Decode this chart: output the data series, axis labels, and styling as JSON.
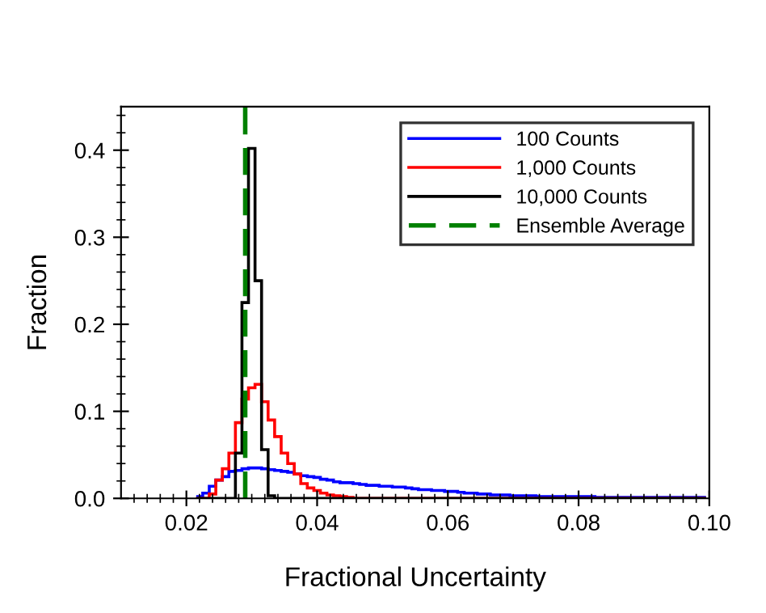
{
  "chart_data": {
    "type": "histogram",
    "xlabel": "Fractional Uncertainty",
    "ylabel": "Fraction",
    "xlim": [
      0.01,
      0.1
    ],
    "ylim": [
      0,
      0.45
    ],
    "xticks": [
      {
        "value": 0.012,
        "label": null
      },
      {
        "value": 0.014,
        "label": null
      },
      {
        "value": 0.016,
        "label": null
      },
      {
        "value": 0.018,
        "label": null
      },
      {
        "value": 0.02,
        "label": "0.02"
      },
      {
        "value": 0.022,
        "label": null
      },
      {
        "value": 0.024,
        "label": null
      },
      {
        "value": 0.026,
        "label": null
      },
      {
        "value": 0.028,
        "label": null
      },
      {
        "value": 0.03,
        "label": null
      },
      {
        "value": 0.032,
        "label": null
      },
      {
        "value": 0.034,
        "label": null
      },
      {
        "value": 0.036,
        "label": null
      },
      {
        "value": 0.038,
        "label": null
      },
      {
        "value": 0.04,
        "label": "0.04"
      },
      {
        "value": 0.042,
        "label": null
      },
      {
        "value": 0.044,
        "label": null
      },
      {
        "value": 0.046,
        "label": null
      },
      {
        "value": 0.048,
        "label": null
      },
      {
        "value": 0.05,
        "label": null
      },
      {
        "value": 0.052,
        "label": null
      },
      {
        "value": 0.054,
        "label": null
      },
      {
        "value": 0.056,
        "label": null
      },
      {
        "value": 0.058,
        "label": null
      },
      {
        "value": 0.06,
        "label": "0.06"
      },
      {
        "value": 0.062,
        "label": null
      },
      {
        "value": 0.064,
        "label": null
      },
      {
        "value": 0.066,
        "label": null
      },
      {
        "value": 0.068,
        "label": null
      },
      {
        "value": 0.07,
        "label": null
      },
      {
        "value": 0.072,
        "label": null
      },
      {
        "value": 0.074,
        "label": null
      },
      {
        "value": 0.076,
        "label": null
      },
      {
        "value": 0.078,
        "label": null
      },
      {
        "value": 0.08,
        "label": "0.08"
      },
      {
        "value": 0.082,
        "label": null
      },
      {
        "value": 0.084,
        "label": null
      },
      {
        "value": 0.086,
        "label": null
      },
      {
        "value": 0.088,
        "label": null
      },
      {
        "value": 0.09,
        "label": null
      },
      {
        "value": 0.092,
        "label": null
      },
      {
        "value": 0.094,
        "label": null
      },
      {
        "value": 0.096,
        "label": null
      },
      {
        "value": 0.098,
        "label": null
      },
      {
        "value": 0.1,
        "label": "0.10"
      }
    ],
    "yticks": [
      {
        "value": 0,
        "label": "0.0"
      },
      {
        "value": 0.02,
        "label": null
      },
      {
        "value": 0.04,
        "label": null
      },
      {
        "value": 0.06,
        "label": null
      },
      {
        "value": 0.08,
        "label": null
      },
      {
        "value": 0.1,
        "label": "0.1"
      },
      {
        "value": 0.12,
        "label": null
      },
      {
        "value": 0.14,
        "label": null
      },
      {
        "value": 0.16,
        "label": null
      },
      {
        "value": 0.18,
        "label": null
      },
      {
        "value": 0.2,
        "label": "0.2"
      },
      {
        "value": 0.22,
        "label": null
      },
      {
        "value": 0.24,
        "label": null
      },
      {
        "value": 0.26,
        "label": null
      },
      {
        "value": 0.28,
        "label": null
      },
      {
        "value": 0.3,
        "label": "0.3"
      },
      {
        "value": 0.32,
        "label": null
      },
      {
        "value": 0.34,
        "label": null
      },
      {
        "value": 0.36,
        "label": null
      },
      {
        "value": 0.38,
        "label": null
      },
      {
        "value": 0.4,
        "label": "0.4"
      },
      {
        "value": 0.42,
        "label": null
      },
      {
        "value": 0.44,
        "label": null
      }
    ],
    "grid": false,
    "legend": "top right",
    "bins": [
      0.0215,
      0.0225,
      0.0235,
      0.0245,
      0.0255,
      0.0265,
      0.0275,
      0.0285,
      0.0295,
      0.0305,
      0.0315,
      0.0325,
      0.0335,
      0.0345,
      0.0355,
      0.0365,
      0.0375,
      0.0385,
      0.0395,
      0.0405,
      0.0415,
      0.0425,
      0.0435,
      0.0445,
      0.0455,
      0.0465,
      0.0475,
      0.0485,
      0.0495,
      0.0505,
      0.0515,
      0.0525,
      0.0535,
      0.0545,
      0.0555,
      0.0565,
      0.0575,
      0.0585,
      0.0595,
      0.0605,
      0.0615,
      0.0625,
      0.0635,
      0.0645,
      0.0655,
      0.0665,
      0.0675,
      0.0685,
      0.0695,
      0.0705,
      0.0715,
      0.0725,
      0.0735,
      0.0745,
      0.0755,
      0.0765,
      0.0775,
      0.0785,
      0.0795,
      0.0805,
      0.0815,
      0.0825,
      0.0835,
      0.0845,
      0.0855,
      0.0865,
      0.0875,
      0.0885,
      0.0895,
      0.0905,
      0.0915,
      0.0925,
      0.0935,
      0.0945,
      0.0955,
      0.0965,
      0.0975,
      0.0985,
      0.0995
    ],
    "series": [
      {
        "name": "100 Counts",
        "color": "#0000ff",
        "values": [
          0.002,
          0.006,
          0.014,
          0.021,
          0.025,
          0.031,
          0.032,
          0.034,
          0.035,
          0.035,
          0.034,
          0.033,
          0.032,
          0.031,
          0.03,
          0.028,
          0.026,
          0.025,
          0.024,
          0.022,
          0.021,
          0.019,
          0.018,
          0.018,
          0.017,
          0.016,
          0.015,
          0.015,
          0.014,
          0.014,
          0.013,
          0.013,
          0.012,
          0.011,
          0.01,
          0.01,
          0.009,
          0.009,
          0.008,
          0.008,
          0.007,
          0.006,
          0.006,
          0.005,
          0.005,
          0.004,
          0.004,
          0.004,
          0.003,
          0.003,
          0.003,
          0.003,
          0.002,
          0.002,
          0.002,
          0.002,
          0.002,
          0.002,
          0.002,
          0.002,
          0.002,
          0.001,
          0.001,
          0.001,
          0.001,
          0.001,
          0.001,
          0.001,
          0.001,
          0.001,
          0.001,
          0.001,
          0.001,
          0.001,
          0.001,
          0.001,
          0.001,
          0.001
        ]
      },
      {
        "name": "1,000 Counts",
        "color": "#ff0000",
        "values": [
          0,
          0,
          0.005,
          0.021,
          0.034,
          0.052,
          0.087,
          0.114,
          0.127,
          0.131,
          0.111,
          0.09,
          0.071,
          0.052,
          0.04,
          0.028,
          0.017,
          0.012,
          0.009,
          0.006,
          0.004,
          0.003,
          0.002,
          0.001,
          0,
          0,
          0,
          0,
          0,
          0,
          0,
          0,
          0,
          0,
          0,
          0,
          0,
          0,
          0,
          0,
          0,
          0,
          0,
          0,
          0,
          0,
          0,
          0,
          0,
          0,
          0,
          0,
          0,
          0,
          0,
          0,
          0,
          0,
          0,
          0,
          0,
          0,
          0,
          0,
          0,
          0,
          0,
          0,
          0,
          0,
          0,
          0,
          0,
          0,
          0,
          0,
          0,
          0
        ]
      },
      {
        "name": "10,000 Counts",
        "color": "#000000",
        "values": [
          0,
          0,
          0,
          0,
          0,
          0,
          0.052,
          0.225,
          0.402,
          0.25,
          0.056,
          0.003,
          0,
          0,
          0,
          0,
          0,
          0,
          0,
          0,
          0,
          0,
          0,
          0,
          0,
          0,
          0,
          0,
          0,
          0,
          0,
          0,
          0,
          0,
          0,
          0,
          0,
          0,
          0,
          0,
          0,
          0,
          0,
          0,
          0,
          0,
          0,
          0,
          0,
          0,
          0,
          0,
          0,
          0,
          0,
          0,
          0,
          0,
          0,
          0,
          0,
          0,
          0,
          0,
          0,
          0,
          0,
          0,
          0,
          0,
          0,
          0,
          0,
          0,
          0,
          0,
          0,
          0
        ]
      },
      {
        "type": "line",
        "name": "Ensemble Average",
        "color": "#008000",
        "line_style": "dashed",
        "x": [
          0.029,
          0.029
        ],
        "values": [
          0,
          0.45
        ]
      }
    ]
  }
}
